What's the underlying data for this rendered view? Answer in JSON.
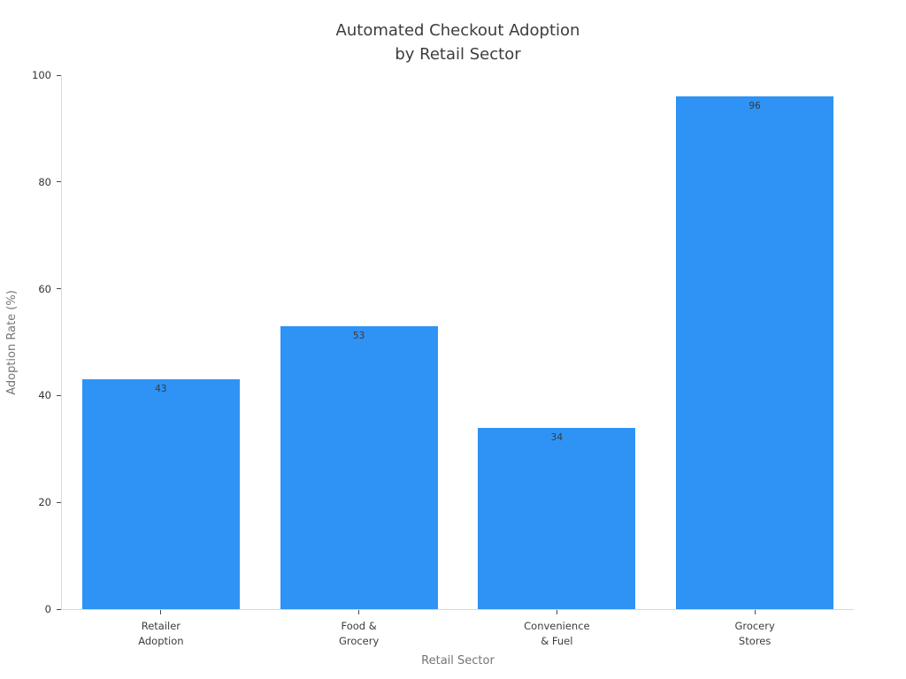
{
  "title_lines": [
    "Automated Checkout Adoption",
    "by Retail Sector"
  ],
  "chart_data": {
    "type": "bar",
    "title": "Automated Checkout Adoption by Retail Sector",
    "categories": [
      "Retailer\nAdoption",
      "Food &\nGrocery",
      "Convenience\n& Fuel",
      "Grocery\nStores"
    ],
    "values": [
      43,
      53,
      34,
      96
    ],
    "value_labels": [
      43,
      53,
      34,
      96
    ],
    "xlabel": "Retail Sector",
    "ylabel": "Adoption Rate (%)",
    "ylim": [
      0,
      100
    ],
    "yticks": [
      0,
      20,
      40,
      60,
      80,
      100
    ],
    "grid": false,
    "legend": "none",
    "bar_color": "#2E93F5",
    "colors": {
      "bar": "#2E93F5",
      "title_text": "#3d3d3d",
      "tick_text": "#333333",
      "axis_title_text": "#757575",
      "axis_line": "#d9d9d9",
      "background": "#ffffff"
    }
  }
}
